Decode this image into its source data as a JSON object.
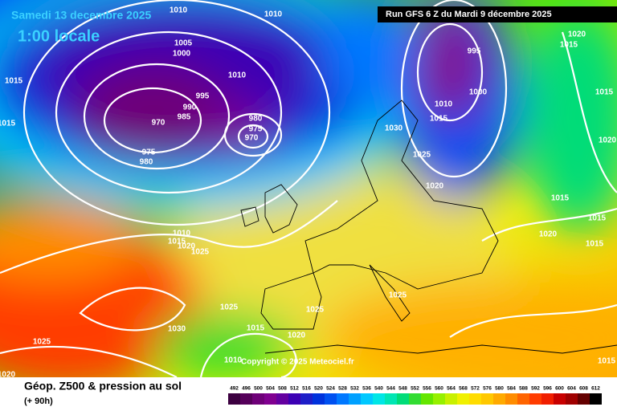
{
  "header": {
    "title": "Samedi 13 decembre 2025",
    "time": "1:00 locale",
    "run": "Run GFS 6 Z du Mardi 9 décembre 2025"
  },
  "copyright": "Copyright © 2025 Meteociel.fr",
  "footer": {
    "title": "Géop. Z500 & pression au sol",
    "lead": "(+ 90h)"
  },
  "isobar_labels": [
    "1010",
    "1010",
    "1005",
    "1000",
    "1015",
    "1015",
    "1010",
    "995",
    "990",
    "985",
    "970",
    "975",
    "980",
    "980",
    "975",
    "970",
    "995",
    "1000",
    "1010",
    "1015",
    "1030",
    "1025",
    "1020",
    "1020",
    "1015",
    "1015",
    "1020",
    "1015",
    "1015",
    "1020",
    "1015",
    "1010",
    "1015",
    "1020",
    "1025",
    "1025",
    "1025",
    "1025",
    "1030",
    "1015",
    "1020",
    "1025",
    "1020",
    "1010",
    "1015"
  ],
  "legend": {
    "values": [
      492,
      496,
      500,
      504,
      508,
      512,
      516,
      520,
      524,
      528,
      532,
      536,
      540,
      544,
      548,
      552,
      556,
      560,
      564,
      568,
      572,
      576,
      580,
      584,
      588,
      592,
      596,
      600,
      604,
      608,
      612
    ],
    "colors": [
      "#3c0040",
      "#55005a",
      "#6e0078",
      "#800090",
      "#6400a0",
      "#3c00b4",
      "#1e1ec8",
      "#0032dc",
      "#0050f0",
      "#0078ff",
      "#00a0ff",
      "#00c8ff",
      "#00e6e6",
      "#00e6b4",
      "#00dc78",
      "#32dc32",
      "#64e600",
      "#96f000",
      "#c8f000",
      "#f0f000",
      "#ffdc00",
      "#ffc800",
      "#ffaa00",
      "#ff8c00",
      "#ff6400",
      "#ff3c00",
      "#f01e00",
      "#c80000",
      "#a00000",
      "#640000",
      "#000000"
    ]
  }
}
